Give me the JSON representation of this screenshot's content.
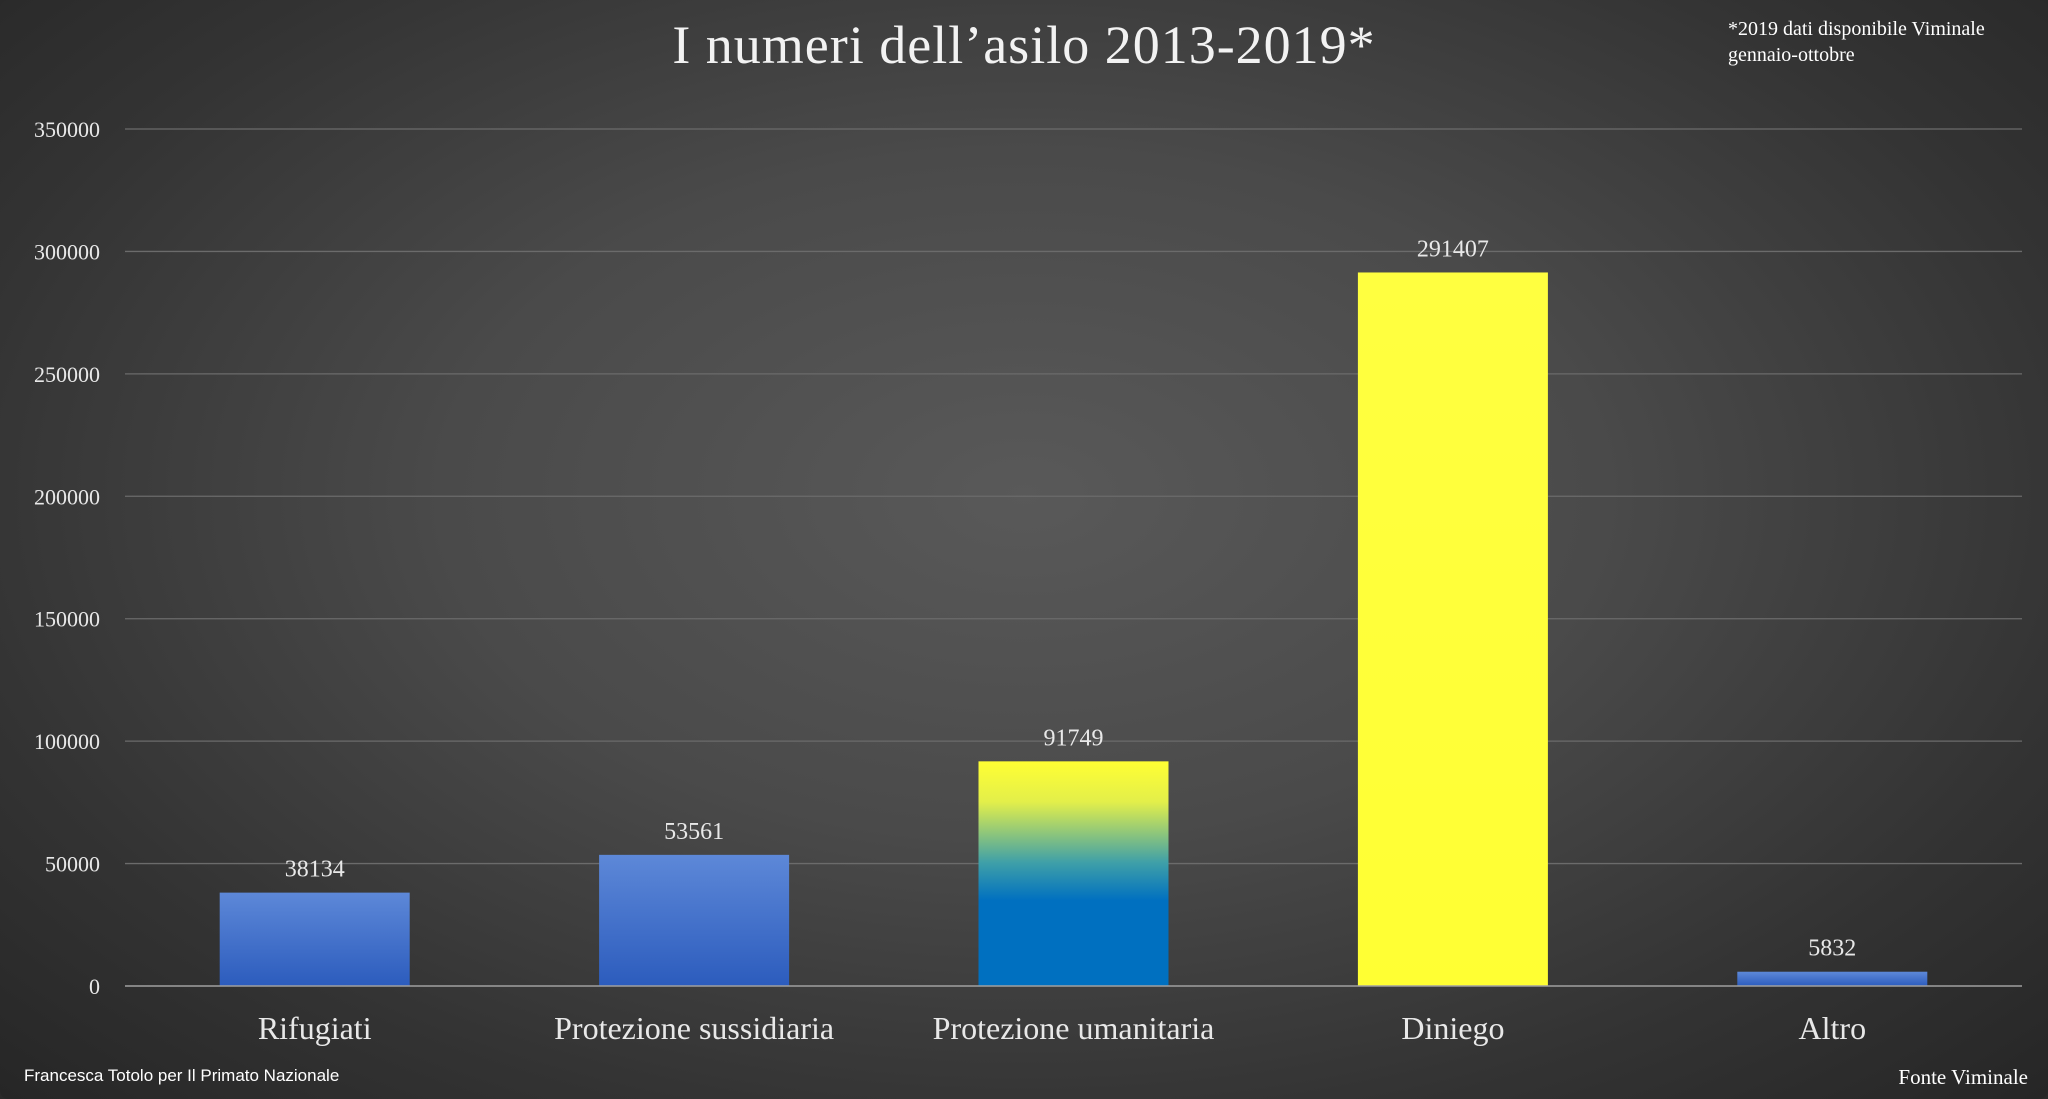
{
  "title": "I numeri dell’asilo 2013-2019*",
  "note_line1": "*2019 dati disponibile Viminale",
  "note_line2": "gennaio-ottobre",
  "credit": "Francesca Totolo per Il Primato Nazionale",
  "source": "Fonte Viminale",
  "chart_data": {
    "type": "bar",
    "title": "I numeri dell’asilo 2013-2019*",
    "xlabel": "",
    "ylabel": "",
    "categories": [
      "Rifugiati",
      "Protezione sussidiaria",
      "Protezione umanitaria",
      "Diniego",
      "Altro"
    ],
    "values": [
      38134,
      53561,
      91749,
      291407,
      5832
    ],
    "ylim": [
      0,
      350000
    ],
    "yticks": [
      0,
      50000,
      100000,
      150000,
      200000,
      250000,
      300000,
      350000
    ],
    "ytick_labels": [
      "0",
      "50000",
      "100000",
      "150000",
      "200000",
      "250000",
      "300000",
      "350000"
    ],
    "grid": true,
    "legend": "none",
    "bar_colors": [
      "#3f6fc8",
      "#3f6fc8",
      "gradient-blue-yellow",
      "#ffff3a",
      "#3f6fc8"
    ],
    "colors": {
      "blue_top": "#5a86d6",
      "blue_bottom": "#2f5fbf",
      "teal": "#0070c0",
      "yellow": "#ffff3a",
      "grid": "#6e6e6e",
      "axis": "#9a9a9a"
    }
  }
}
